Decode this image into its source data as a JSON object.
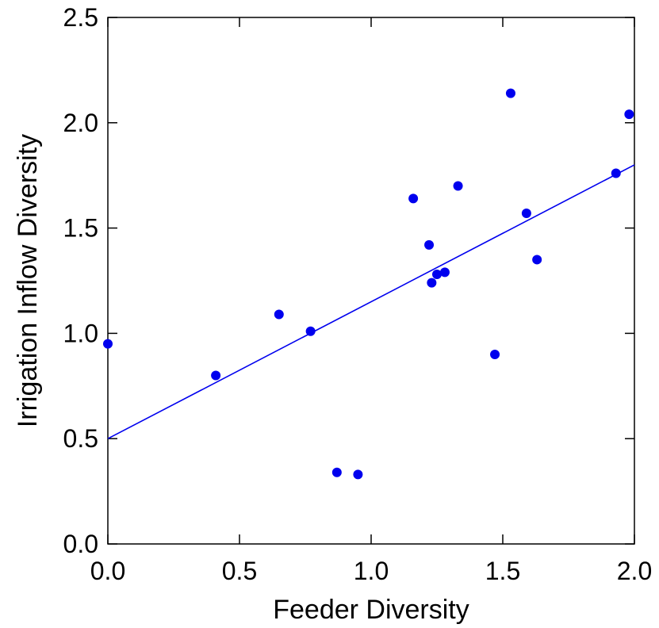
{
  "chart_data": {
    "type": "scatter",
    "title": "",
    "xlabel": "Feeder Diversity",
    "ylabel": "Irrigation Inflow Diversity",
    "xlim": [
      0.0,
      2.0
    ],
    "ylim": [
      0.0,
      2.5
    ],
    "xticks": [
      "0.0",
      "0.5",
      "1.0",
      "1.5",
      "2.0"
    ],
    "yticks": [
      "0.0",
      "0.5",
      "1.0",
      "1.5",
      "2.0",
      "2.5"
    ],
    "grid": false,
    "legend": "none",
    "series": [
      {
        "points": [
          {
            "x": 0.0,
            "y": 0.95
          },
          {
            "x": 0.41,
            "y": 0.8
          },
          {
            "x": 0.65,
            "y": 1.09
          },
          {
            "x": 0.77,
            "y": 1.01
          },
          {
            "x": 0.87,
            "y": 0.34
          },
          {
            "x": 0.95,
            "y": 0.33
          },
          {
            "x": 1.16,
            "y": 1.64
          },
          {
            "x": 1.22,
            "y": 1.42
          },
          {
            "x": 1.23,
            "y": 1.24
          },
          {
            "x": 1.25,
            "y": 1.28
          },
          {
            "x": 1.28,
            "y": 1.29
          },
          {
            "x": 1.33,
            "y": 1.7
          },
          {
            "x": 1.47,
            "y": 0.9
          },
          {
            "x": 1.53,
            "y": 2.14
          },
          {
            "x": 1.59,
            "y": 1.57
          },
          {
            "x": 1.63,
            "y": 1.35
          },
          {
            "x": 1.93,
            "y": 1.76
          },
          {
            "x": 1.98,
            "y": 2.04
          }
        ]
      }
    ],
    "fit_line": {
      "x": [
        0.0,
        2.0
      ],
      "y": [
        0.5,
        1.8
      ]
    },
    "colors": {
      "points": "#0000ee",
      "fit_line": "#0000ee",
      "axes": "#000000"
    }
  }
}
